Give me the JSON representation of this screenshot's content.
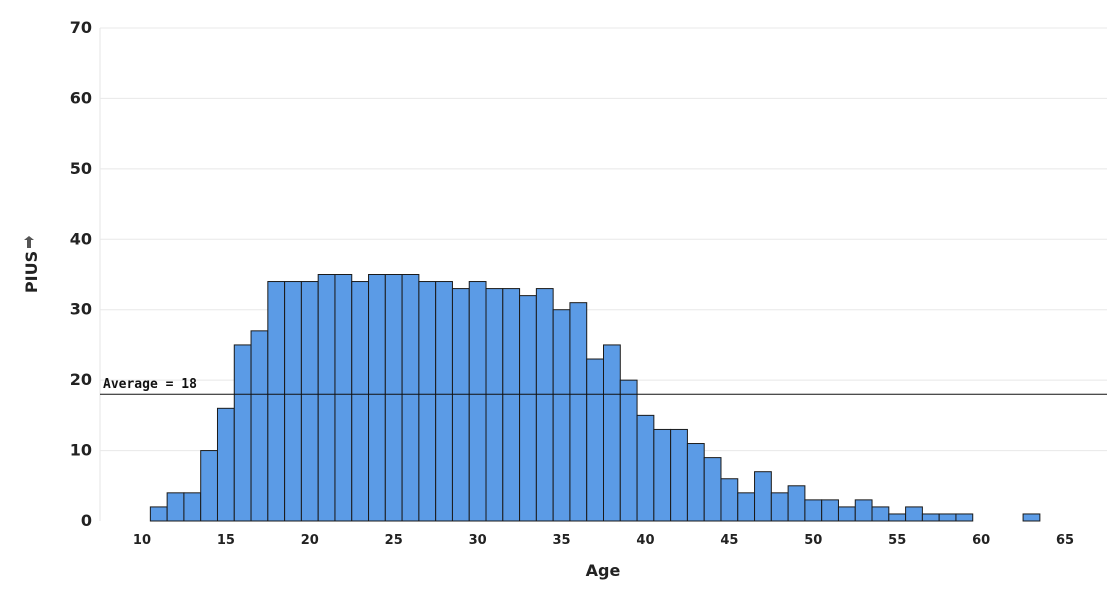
{
  "chart_data": {
    "type": "bar",
    "xlabel": "Age",
    "ylabel": "PIUS",
    "ylim": [
      0,
      70
    ],
    "xlim": [
      7.5,
      67.5
    ],
    "y_ticks": [
      0,
      10,
      20,
      30,
      40,
      50,
      60,
      70
    ],
    "x_ticks": [
      10,
      15,
      20,
      25,
      30,
      35,
      40,
      45,
      50,
      55,
      60,
      65
    ],
    "grid": true,
    "bar_color": "#5b9be6",
    "reference_line": {
      "label": "Average =  18",
      "value": 18
    },
    "x": [
      11,
      12,
      13,
      14,
      15,
      16,
      17,
      18,
      19,
      20,
      21,
      22,
      23,
      24,
      25,
      26,
      27,
      28,
      29,
      30,
      31,
      32,
      33,
      34,
      35,
      36,
      37,
      38,
      39,
      40,
      41,
      42,
      43,
      44,
      45,
      46,
      47,
      48,
      49,
      50,
      51,
      52,
      53,
      54,
      55,
      56,
      57,
      58,
      59,
      60,
      61,
      62,
      63
    ],
    "values": [
      2,
      4,
      4,
      10,
      16,
      25,
      27,
      34,
      34,
      34,
      35,
      35,
      34,
      35,
      35,
      35,
      34,
      34,
      33,
      34,
      33,
      33,
      32,
      33,
      30,
      31,
      23,
      25,
      20,
      15,
      13,
      13,
      11,
      9,
      6,
      4,
      7,
      4,
      5,
      3,
      3,
      2,
      3,
      2,
      1,
      2,
      1,
      1,
      1,
      0,
      0,
      0,
      1
    ]
  },
  "pin_icon": "pin-icon"
}
